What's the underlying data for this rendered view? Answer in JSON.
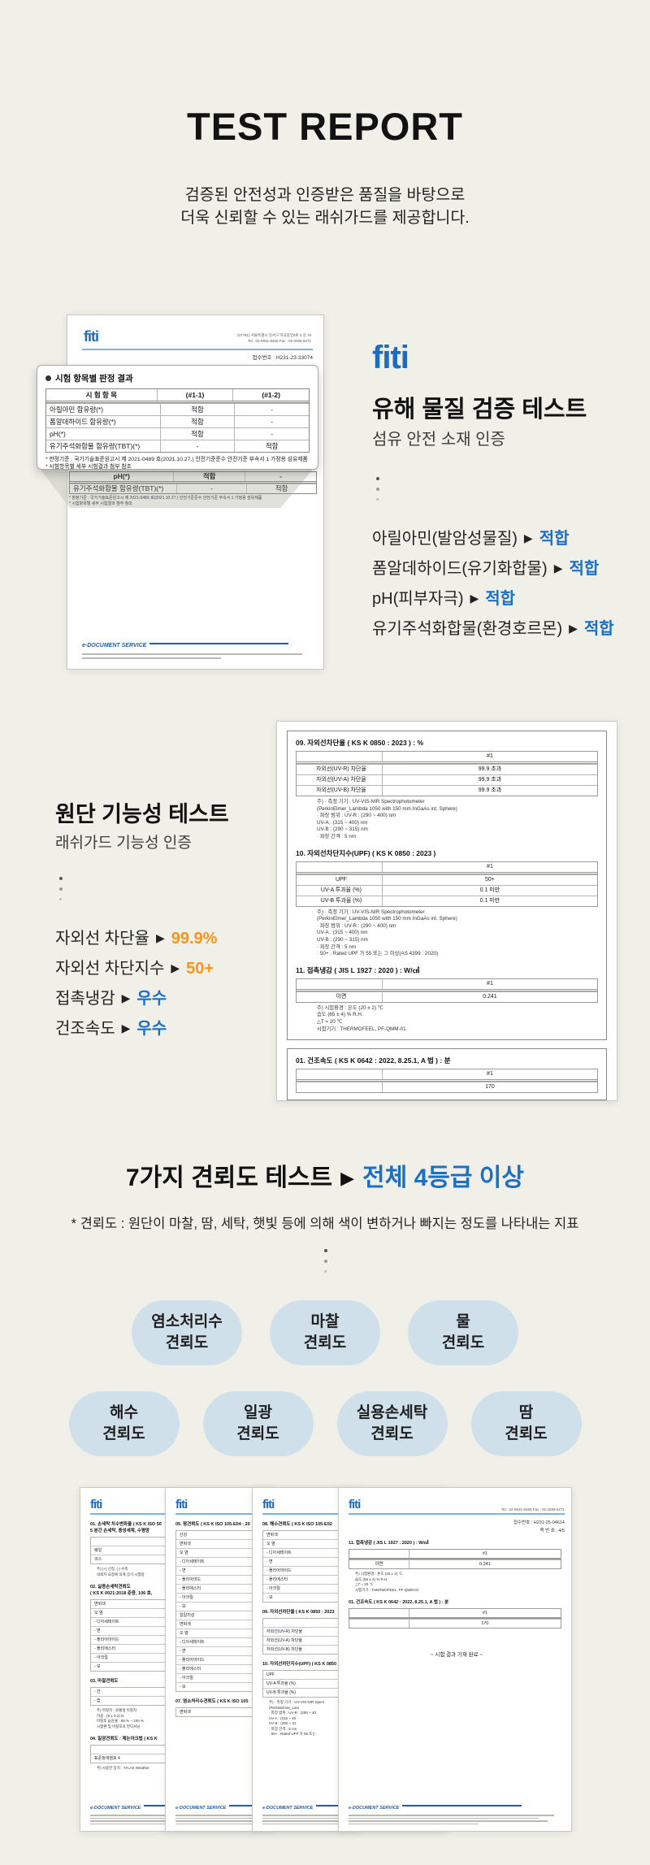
{
  "glyphs": {
    "arrow": "▶"
  },
  "header": {
    "title": "TEST REPORT",
    "subtitle1": "검증된 안전성과 인증받은 품질을 바탕으로",
    "subtitle2": "더욱 신뢰할 수 있는 래쉬가드를 제공합니다."
  },
  "brand": {
    "logo_text": "fiti"
  },
  "cert1": {
    "address_line1": "(07791) 서울특별시 강서구 마곡중앙8로 3 길 76",
    "address_line2": "Tel : 02-6931-8460   Fax : 02-3299-8271",
    "receipt_no": "접수번호 : H231-23-33074",
    "callout_title": "시험 항목별 판정 결과",
    "table_rows": [
      [
        "시 험 항 목",
        "(#1-1)",
        "(#1-2)"
      ],
      [
        "아릴아민 함유량(*)",
        "적합",
        "-"
      ],
      [
        "폼알데하이드 함유량(*)",
        "적합",
        "-"
      ],
      [
        "pH(*)",
        "적합",
        "-"
      ],
      [
        "유기주석화합물 함유량(TBT)(*)",
        "-",
        "적합"
      ]
    ],
    "notes": [
      "* 판정기준 : 국가기술표준원고시 제 2021-0489 호(2021.10.27.) 안전기준준수 안전기준 부속서 1 가정용 섬유제품",
      "* 시험항목별 세부 시험결과 첨부 참조"
    ],
    "under_rows": [
      [
        "pH(*)",
        "적합",
        "-"
      ],
      [
        "유기주석화합물 함유량(TBT)(*)",
        "-",
        "적합"
      ]
    ],
    "under_notes": [
      "* 판정기준 : 국가기술표준원고시 제 2021-0489 호(2021.10.27.) 안전기준준수 안전기준 부속서 1 가정용 섬유제품",
      "* 시험항목별 세부 시험결과 첨부 참조"
    ],
    "footer_label": "e-DOCUMENT SERVICE"
  },
  "section1": {
    "heading": "유해 물질 검증 테스트",
    "subheading": "섬유 안전 소재 인증",
    "items": [
      {
        "label": "아릴아민(발암성물질)",
        "value": "적합"
      },
      {
        "label": "폼알데하이드(유기화합물)",
        "value": "적합"
      },
      {
        "label": "pH(피부자극)",
        "value": "적합"
      },
      {
        "label": "유기주석화합물(환경호르몬)",
        "value": "적합"
      }
    ]
  },
  "section2": {
    "heading": "원단 기능성 테스트",
    "subheading": "래쉬가드 기능성 인증",
    "items": [
      {
        "label": "자외선 차단율",
        "value": "99.9%"
      },
      {
        "label": "자외선 차단지수",
        "value": "50+"
      },
      {
        "label": "접촉냉감",
        "value": "우수"
      },
      {
        "label": "건조속도",
        "value": "우수"
      }
    ]
  },
  "cert2": {
    "sec09": {
      "title": "09. 자외선차단율 ( KS K 0850 : 2023 ) : %",
      "rows": [
        [
          "",
          "#1"
        ],
        [
          "자외선(UV-R) 차단율",
          "99.9 초과"
        ],
        [
          "자외선(UV-A) 차단율",
          "99.9 초과"
        ],
        [
          "자외선(UV-B) 차단율",
          "99.9 초과"
        ]
      ],
      "notes": [
        "주) · 측정 기기 : UV-VIS-NIR Spectrophotometer",
        "(PerkinElmer_Lambda 1050 with 150 mm InGaAs int. Sphere)",
        "· 파장 범위 : UV-R : (290 ~ 400) nm",
        "UV-A : (315 ~ 400) nm",
        "UV-B : (290 ~ 315) nm",
        "· 파장 간격 : 5 nm"
      ]
    },
    "sec10": {
      "title": "10. 자외선차단지수(UPF) ( KS K 0850 : 2023 )",
      "rows": [
        [
          "",
          "#1"
        ],
        [
          "UPF",
          "50+"
        ],
        [
          "UV-A 투과율 (%)",
          "0.1 미만"
        ],
        [
          "UV-B 투과율 (%)",
          "0.1 미만"
        ]
      ],
      "notes": [
        "주) · 측정 기기 : UV-VIS-NIR Spectrophotometer",
        "(PerkinElmer_Lambda 1050 with 150 mm InGaAs int. Sphere)",
        "· 파장 범위 : UV-R : (290 ~ 400) nm",
        "UV-A : (315 ~ 400) nm",
        "UV-B : (290 ~ 315) nm",
        "· 파장 간격 : 5 nm",
        "· 50+ : Rated UPF 가 55 또는 그 이상(AS 4399 : 2020)"
      ]
    },
    "sec11": {
      "title": "11. 접촉냉감 ( JIS L 1927 : 2020 ) : W/㎠",
      "rows": [
        [
          "",
          "#1"
        ],
        [
          "이면",
          "0.241"
        ]
      ],
      "notes": [
        "주) 시험환경 : 온도 (20 ± 2) ℃",
        "습도 (65 ± 4) % R.H.",
        "△T = 20 ℃",
        "시험기기 : THERMOFEEL, PF-QMM-01"
      ]
    },
    "sec01": {
      "title": "01. 건조속도 ( KS K 0642 : 2022, 8.25.1, A 법 ) : 분",
      "rows": [
        [
          "",
          "#1"
        ],
        [
          "",
          "170"
        ]
      ]
    }
  },
  "section3": {
    "heading_black": "7가지 견뢰도 테스트",
    "heading_blue": "전체 4등급 이상",
    "note": "* 견뢰도 : 원단이 마찰, 땀, 세탁, 햇빛 등에 의해 색이 변하거나 빠지는 정도를 나타내는 지표",
    "badges_row1": [
      "염소처리수\n견뢰도",
      "마찰\n견뢰도",
      "물\n견뢰도"
    ],
    "badges_row2": [
      "해수\n견뢰도",
      "일광\n견뢰도",
      "실용손세탁\n견뢰도",
      "땀\n견뢰도"
    ]
  },
  "docs": {
    "footer_label": "e-DOCUMENT SERVICE",
    "doc1": {
      "title1": [
        "01. 손세탁 치수변화율 ( KS K ISO 50",
        "5 분간 손세탁, 중성세제, 수평망"
      ],
      "rows1": [
        "",
        "웨일",
        "코스"
      ],
      "notes1": [
        "주) (+) 신장, (-) 수축",
        "의뢰자 요청에 의해 상기 시험방"
      ],
      "title2": [
        "02. 실용손세탁견뢰도",
        "( KS K 0021:2018 준용, 106 호,"
      ],
      "rows2": [
        "변퇴색",
        "오 염",
        "- 디아세테이트",
        "- 면",
        "- 폴리아마이드",
        "- 폴리에스터",
        "- 아크릴",
        "- 모"
      ],
      "title3": [
        "03. 마찰견뢰도"
      ],
      "rows3": [
        "- 건",
        "- 습"
      ],
      "notes3": [
        "주) 마찰자 : 원통형 마찰자",
        "하중 : (9 ± 0.2) N",
        "마찰포 습윤율 : 95 % ~ 100 %",
        "시험편 및 마찰포의 컨디셔닝"
      ],
      "title4": [
        "04. 일광견뢰도 : 제논아크법 ( KS K"
      ],
      "rows4": [
        "",
        "표준청색염포 4"
      ],
      "notes4": [
        "주) 사용한 장치 : ATLAS Weather"
      ]
    },
    "doc2": {
      "title1": [
        "05. 땀견뢰도 ( KS K ISO 105-E04 : 20"
      ],
      "rows1": [
        "산성",
        "변퇴색",
        "오 염",
        "- 디아세테이트",
        "- 면",
        "- 폴리아미드",
        "- 폴리에스터",
        "- 아크릴",
        "- 모",
        "알칼리성",
        "변퇴색",
        "오 염",
        "- 디아세테이트",
        "- 면",
        "- 폴리아마이드",
        "- 폴리에스터",
        "- 아크릴",
        "- 모"
      ],
      "title2": [
        "07. 염소처리수견뢰도 ( KS K ISO 105"
      ],
      "rows2": [
        "변퇴색"
      ]
    },
    "doc3": {
      "title1": [
        "08. 해수견뢰도 ( KS K ISO 105-E02"
      ],
      "rows1": [
        "변퇴색",
        "오 염",
        "- 디아세테이트",
        "- 면",
        "- 폴리아마이드",
        "- 폴리에스터",
        "- 아크릴",
        "- 모"
      ],
      "title2": [
        "09. 자외선차단율 ( KS K 0850 : 2023"
      ],
      "rows2": [
        "",
        "자외선(UV-R) 차단율",
        "자외선(UV-A) 차단율",
        "자외선(UV-B) 차단율"
      ],
      "title3": [
        "10. 자외선차단지수(UPF) ( KS K 0850"
      ],
      "rows3": [
        "UPF",
        "UV-A 투과율 (%)",
        "UV-B 투과율 (%)"
      ],
      "notes3": [
        "주) · 측정 기기 : UV-VIS-NIR Spect",
        "(PerkinElmer_Lam",
        "· 파장 범위 : UV-R : (290 ~ 40",
        "UV-A : (315 ~ 40",
        "UV-B : (290 ~ 31",
        "· 파장 간격 : 5 nm",
        "· 50+ : Rated UPF 가 55 또는"
      ]
    },
    "doc4": {
      "tel": "Tel : 02-6931-8460  Fax : 02-3299-8271",
      "receipt": "접수번호 : H231-25-04614",
      "page_no": "쪽 번 호 : 4/5",
      "sec11_title": "11. 접촉냉감 ( JIS L 1927 : 2020 ) : W/㎠",
      "sec11_rows": [
        [
          "",
          "#1"
        ],
        [
          "이면",
          "0.241"
        ]
      ],
      "sec11_notes": [
        "주) 시험환경 : 온도 (20 ± 2) ℃",
        "습도 (65 ± 4) % R.H.",
        "△T = 20 ℃",
        "시험기기 : THERMOFEEL, PF-QMM-01"
      ],
      "sec01_title": "01. 건조속도 ( KS K 0642 : 2022, 8.25.1, A 법 ) : 분",
      "sec01_rows": [
        [
          "",
          "#1"
        ],
        [
          "",
          "170"
        ]
      ],
      "done_note": "~ 시험 결과 기재 완료 ~"
    }
  }
}
